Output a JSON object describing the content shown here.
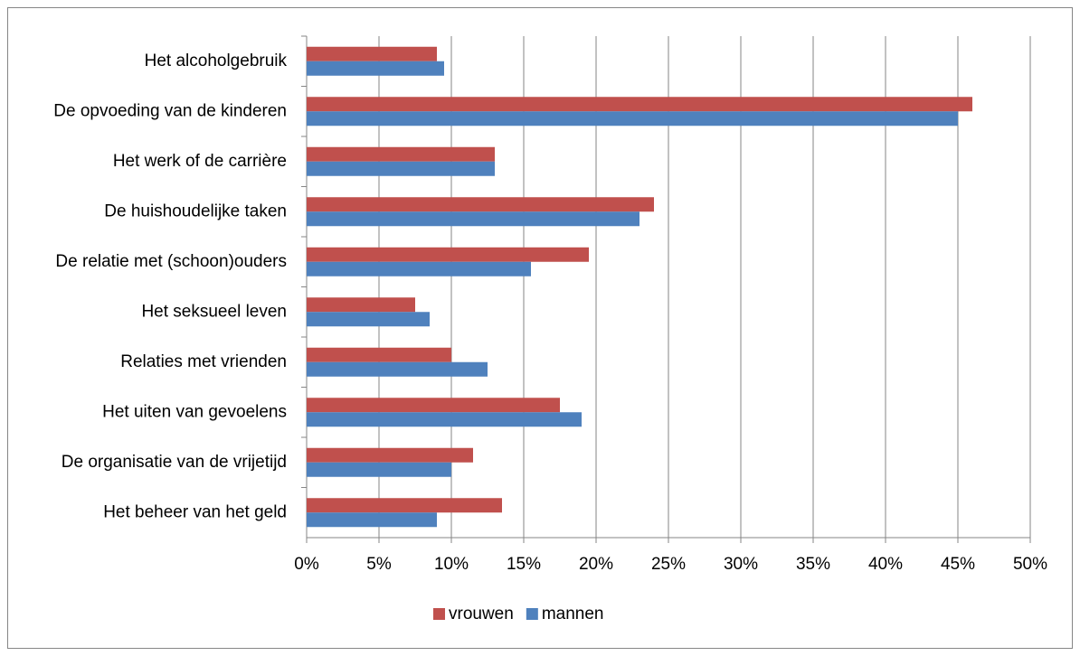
{
  "chart_data": {
    "type": "bar",
    "orientation": "horizontal",
    "categories": [
      "Het alcoholgebruik",
      "De opvoeding van de kinderen",
      "Het werk of de carrière",
      "De huishoudelijke taken",
      "De relatie met (schoon)ouders",
      "Het seksueel leven",
      "Relaties met vrienden",
      "Het uiten van gevoelens",
      "De organisatie van de vrijetijd",
      "Het beheer van het geld"
    ],
    "series": [
      {
        "name": "vrouwen",
        "color": "#c0504d",
        "values": [
          9,
          46,
          13,
          24,
          19.5,
          7.5,
          10,
          17.5,
          11.5,
          13.5
        ]
      },
      {
        "name": "mannen",
        "color": "#4f81bd",
        "values": [
          9.5,
          45,
          13,
          23,
          15.5,
          8.5,
          12.5,
          19,
          10,
          9
        ]
      }
    ],
    "xlim": [
      0,
      50
    ],
    "xticks": [
      {
        "value": 0,
        "label": "0%"
      },
      {
        "value": 5,
        "label": "5%"
      },
      {
        "value": 10,
        "label": "10%"
      },
      {
        "value": 15,
        "label": "15%"
      },
      {
        "value": 20,
        "label": "20%"
      },
      {
        "value": 25,
        "label": "25%"
      },
      {
        "value": 30,
        "label": "30%"
      },
      {
        "value": 35,
        "label": "35%"
      },
      {
        "value": 40,
        "label": "40%"
      },
      {
        "value": 45,
        "label": "45%"
      },
      {
        "value": 50,
        "label": "50%"
      }
    ],
    "grid": true,
    "legend": "bottom"
  }
}
